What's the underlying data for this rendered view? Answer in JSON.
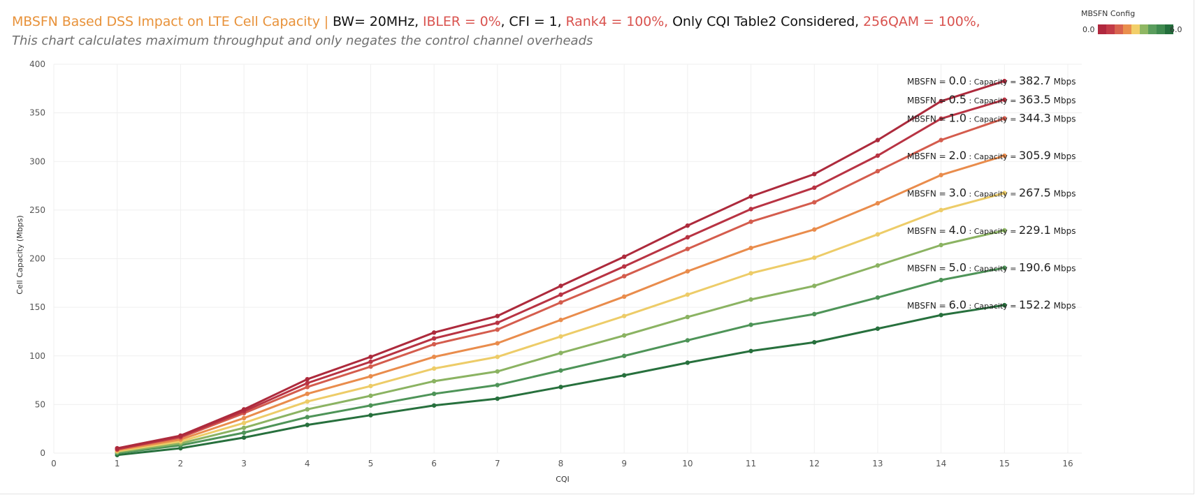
{
  "title": {
    "segments": [
      {
        "text": "MBSFN Based DSS Impact on LTE Cell Capacity | ",
        "color": "#e8923a"
      },
      {
        "text": "BW= 20MHz,  ",
        "color": "#111111"
      },
      {
        "text": "IBLER = 0%",
        "color": "#d9534f"
      },
      {
        "text": ", CFI = 1, ",
        "color": "#111111"
      },
      {
        "text": "Rank4 = 100%, ",
        "color": "#d9534f"
      },
      {
        "text": "Only CQI Table2 Considered, ",
        "color": "#111111"
      },
      {
        "text": "256QAM = 100%,",
        "color": "#d9534f"
      }
    ],
    "subtitle": "This chart calculates maximum throughput and only negates the control channel overheads"
  },
  "legend": {
    "title": "MBSFN Config",
    "min_label": "0.0",
    "max_label": "6.0",
    "colors": [
      "#b0283e",
      "#c23b47",
      "#d8634f",
      "#ea8f4d",
      "#f2cf6a",
      "#8fb763",
      "#5a9d5d",
      "#3f8a4f",
      "#236f3c"
    ]
  },
  "chart_data": {
    "type": "line",
    "xlabel": "CQI",
    "ylabel": "Cell Capacity (Mbps)",
    "xlim": [
      0,
      16
    ],
    "ylim": [
      0,
      400
    ],
    "x_ticks": [
      0,
      1,
      2,
      3,
      4,
      5,
      6,
      7,
      8,
      9,
      10,
      11,
      12,
      13,
      14,
      15,
      16
    ],
    "y_ticks": [
      0,
      50,
      100,
      150,
      200,
      250,
      300,
      350,
      400
    ],
    "grid": true,
    "x": [
      1,
      2,
      3,
      4,
      5,
      6,
      7,
      8,
      9,
      10,
      11,
      12,
      13,
      14,
      15
    ],
    "series": [
      {
        "name": "0.0",
        "color": "#ad2a3c",
        "values": [
          5,
          18,
          45,
          76,
          99,
          124,
          141,
          172,
          202,
          234,
          264,
          287,
          322,
          362,
          382.7
        ]
      },
      {
        "name": "0.5",
        "color": "#b83343",
        "values": [
          4,
          17,
          43,
          72,
          94,
          118,
          134,
          163,
          192,
          222,
          251,
          273,
          306,
          344,
          363.5
        ]
      },
      {
        "name": "1.0",
        "color": "#d45c4d",
        "values": [
          4,
          16,
          41,
          68,
          89,
          112,
          127,
          155,
          182,
          210,
          238,
          258,
          290,
          322,
          344.3
        ]
      },
      {
        "name": "2.0",
        "color": "#e98c4c",
        "values": [
          3,
          14,
          36,
          61,
          79,
          99,
          113,
          137,
          161,
          187,
          211,
          230,
          257,
          286,
          305.9
        ]
      },
      {
        "name": "3.0",
        "color": "#edcc68",
        "values": [
          2,
          12,
          31,
          53,
          69,
          87,
          99,
          120,
          141,
          163,
          185,
          201,
          225,
          250,
          267.5
        ]
      },
      {
        "name": "4.0",
        "color": "#8bb362",
        "values": [
          1,
          10,
          26,
          45,
          59,
          74,
          84,
          103,
          121,
          140,
          158,
          172,
          193,
          214,
          229.1
        ]
      },
      {
        "name": "5.0",
        "color": "#4e9458",
        "values": [
          0,
          8,
          21,
          37,
          49,
          61,
          70,
          85,
          100,
          116,
          132,
          143,
          160,
          178,
          190.6
        ]
      },
      {
        "name": "6.0",
        "color": "#27703d",
        "values": [
          -2,
          5,
          16,
          29,
          39,
          49,
          56,
          68,
          80,
          93,
          105,
          114,
          128,
          142,
          152.2
        ]
      }
    ],
    "annotations": [
      {
        "prefix": "MBSFN = ",
        "config": "0.0",
        "mid": " : Capacity = ",
        "capacity": "382.7",
        "unit": " Mbps",
        "y": 382.7
      },
      {
        "prefix": "MBSFN = ",
        "config": "0.5",
        "mid": " : Capacity = ",
        "capacity": "363.5",
        "unit": " Mbps",
        "y": 363.5
      },
      {
        "prefix": "MBSFN = ",
        "config": "1.0",
        "mid": " : Capacity = ",
        "capacity": "344.3",
        "unit": " Mbps",
        "y": 344.3
      },
      {
        "prefix": "MBSFN = ",
        "config": "2.0",
        "mid": " : Capacity = ",
        "capacity": "305.9",
        "unit": " Mbps",
        "y": 305.9
      },
      {
        "prefix": "MBSFN = ",
        "config": "3.0",
        "mid": " : Capacity = ",
        "capacity": "267.5",
        "unit": " Mbps",
        "y": 267.5
      },
      {
        "prefix": "MBSFN = ",
        "config": "4.0",
        "mid": " : Capacity = ",
        "capacity": "229.1",
        "unit": " Mbps",
        "y": 229.1
      },
      {
        "prefix": "MBSFN = ",
        "config": "5.0",
        "mid": " : Capacity = ",
        "capacity": "190.6",
        "unit": " Mbps",
        "y": 190.6
      },
      {
        "prefix": "MBSFN = ",
        "config": "6.0",
        "mid": " : Capacity = ",
        "capacity": "152.2",
        "unit": " Mbps",
        "y": 152.2
      }
    ]
  }
}
